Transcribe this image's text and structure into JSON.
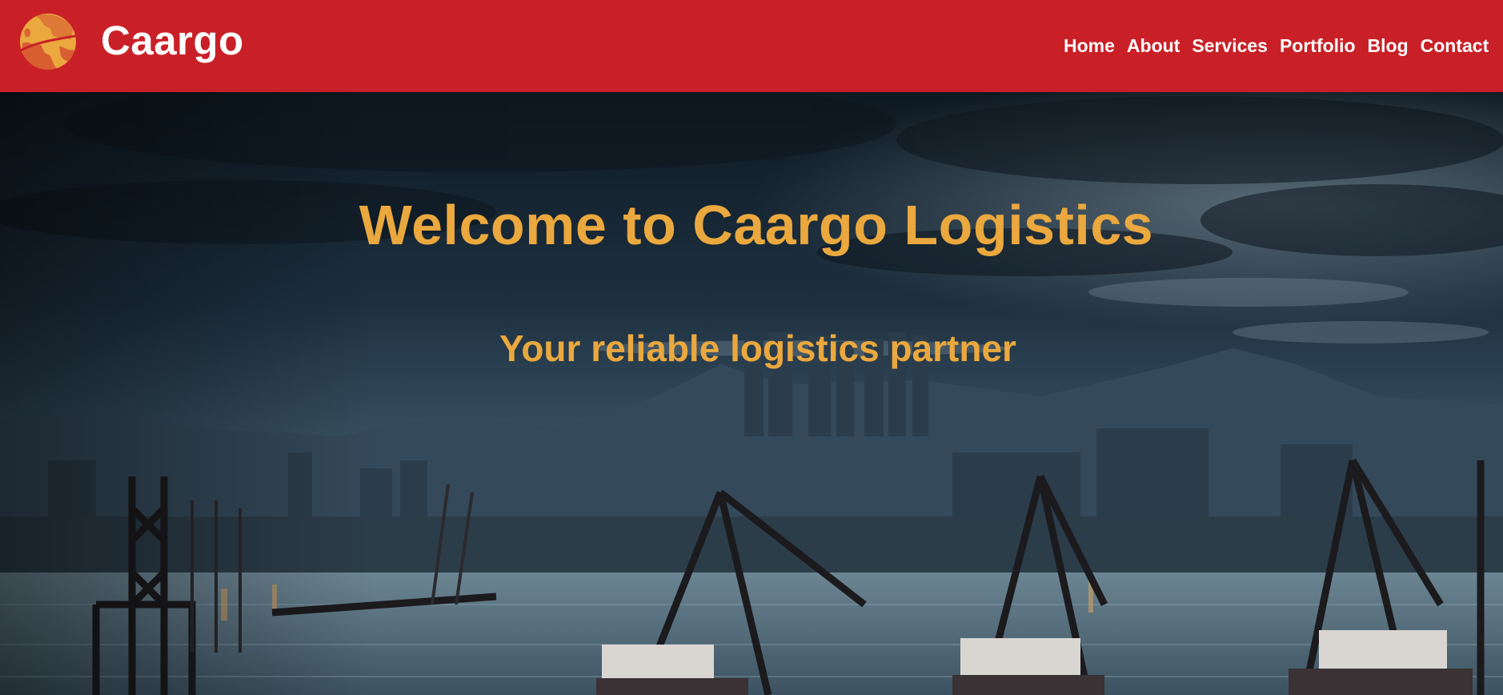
{
  "header": {
    "brand": "Caargo",
    "logo_icon": "globe-icon",
    "colors": {
      "background": "#c92027",
      "logo_globe": "#eaa83e",
      "text": "#ffffff"
    }
  },
  "nav": {
    "items": [
      {
        "label": "Home"
      },
      {
        "label": "About"
      },
      {
        "label": "Services"
      },
      {
        "label": "Portfolio"
      },
      {
        "label": "Blog"
      },
      {
        "label": "Contact"
      }
    ]
  },
  "hero": {
    "title": "Welcome to Caargo Logistics",
    "subtitle": "Your reliable logistics partner",
    "colors": {
      "heading": "#eaa83e",
      "sky": "#1a2b3a",
      "water": "#4a6070"
    }
  }
}
